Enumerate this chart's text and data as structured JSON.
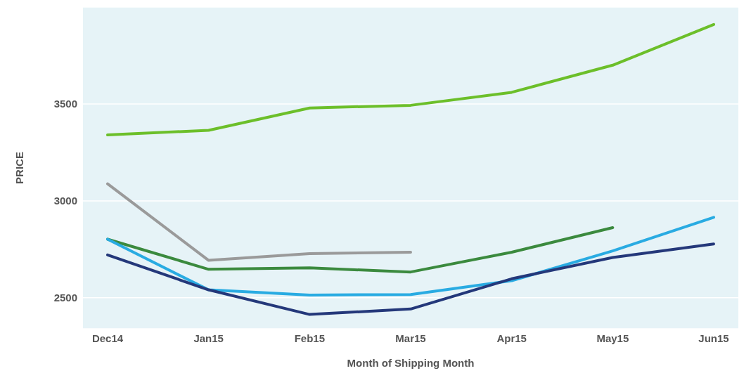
{
  "chart_data": {
    "type": "line",
    "xlabel": "Month of Shipping Month",
    "ylabel": "PRICE",
    "categories": [
      "Dec14",
      "Jan15",
      "Feb15",
      "Mar15",
      "Apr15",
      "May15",
      "Jun15"
    ],
    "series": [
      {
        "color": "#6cbf2a",
        "values": [
          3340,
          3364,
          3479,
          3493,
          3560,
          3700,
          3910
        ]
      },
      {
        "color": "#9a9a9a",
        "values": [
          3088,
          2693,
          2728,
          2735,
          null,
          null,
          null
        ]
      },
      {
        "color": "#3b8a3e",
        "values": [
          2802,
          2647,
          2654,
          2633,
          2735,
          2862,
          null
        ]
      },
      {
        "color": "#29abe2",
        "values": [
          2802,
          2541,
          2514,
          2517,
          2588,
          2742,
          2915
        ]
      },
      {
        "color": "#24387a",
        "values": [
          2721,
          2541,
          2414,
          2442,
          2598,
          2708,
          2778
        ]
      }
    ],
    "ylim": [
      2340,
      4000
    ],
    "yticks": [
      2500,
      3000,
      3500
    ],
    "grid": "y",
    "marker": "none",
    "line_style": "solid"
  }
}
